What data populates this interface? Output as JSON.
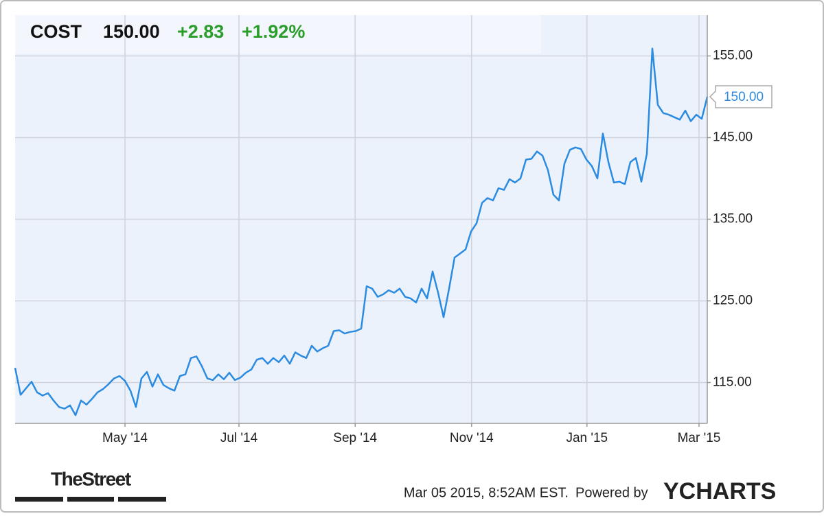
{
  "chart_data": {
    "type": "line",
    "header": {
      "ticker": "COST",
      "price": "150.00",
      "change": "+2.83",
      "change_pct": "+1.92%"
    },
    "last_label": "150.00",
    "footer": {
      "brand": "TheStreet",
      "timestamp": "Mar 05 2015, 8:52AM EST.",
      "powered": "Powered by",
      "logo": "YCHARTS"
    },
    "color": "#2b8be0",
    "grid": true,
    "xlim": [
      0,
      126
    ],
    "xticks": [
      {
        "value": 20,
        "label": "May '14"
      },
      {
        "value": 40.75,
        "label": "Jul '14"
      },
      {
        "value": 61.9,
        "label": "Sep '14"
      },
      {
        "value": 83.1,
        "label": "Nov '14"
      },
      {
        "value": 104.1,
        "label": "Jan '15"
      },
      {
        "value": 124.5,
        "label": "Mar '15"
      }
    ],
    "ylim": [
      110,
      160
    ],
    "yticks": [
      {
        "value": 115,
        "label": "115.00"
      },
      {
        "value": 125,
        "label": "125.00"
      },
      {
        "value": 135,
        "label": "135.00"
      },
      {
        "value": 145,
        "label": "145.00"
      },
      {
        "value": 155,
        "label": "155.00"
      }
    ],
    "values": [
      116.8,
      113.5,
      114.3,
      115.1,
      113.8,
      113.4,
      113.7,
      112.8,
      112.0,
      111.8,
      112.2,
      111.0,
      112.8,
      112.3,
      113.0,
      113.8,
      114.2,
      114.8,
      115.5,
      115.8,
      115.2,
      114.0,
      112.0,
      115.5,
      116.3,
      114.5,
      116.0,
      114.7,
      114.3,
      114.0,
      115.8,
      116.0,
      118.0,
      118.2,
      117.0,
      115.5,
      115.3,
      116.0,
      115.4,
      116.2,
      115.3,
      115.6,
      116.2,
      116.6,
      117.8,
      118.0,
      117.3,
      118.0,
      117.5,
      118.3,
      117.3,
      118.7,
      118.3,
      118.0,
      119.5,
      118.8,
      119.2,
      119.5,
      121.3,
      121.4,
      121.0,
      121.2,
      121.3,
      121.6,
      126.8,
      126.5,
      125.5,
      125.8,
      126.3,
      126.0,
      126.5,
      125.5,
      125.3,
      124.8,
      126.5,
      125.3,
      128.6,
      126.0,
      123.0,
      126.5,
      130.3,
      130.8,
      131.3,
      133.5,
      134.5,
      137.0,
      137.6,
      137.3,
      138.8,
      138.6,
      139.9,
      139.5,
      140.0,
      142.3,
      142.4,
      143.3,
      142.8,
      141.0,
      138.0,
      137.3,
      141.8,
      143.5,
      143.8,
      143.6,
      142.3,
      141.5,
      140.0,
      145.5,
      142.0,
      139.5,
      139.6,
      139.3,
      142.0,
      142.5,
      139.6,
      143.0,
      155.9,
      149.0,
      148.0,
      147.8,
      147.5,
      147.2,
      148.3,
      147.0,
      147.8,
      147.3,
      150.0
    ]
  }
}
